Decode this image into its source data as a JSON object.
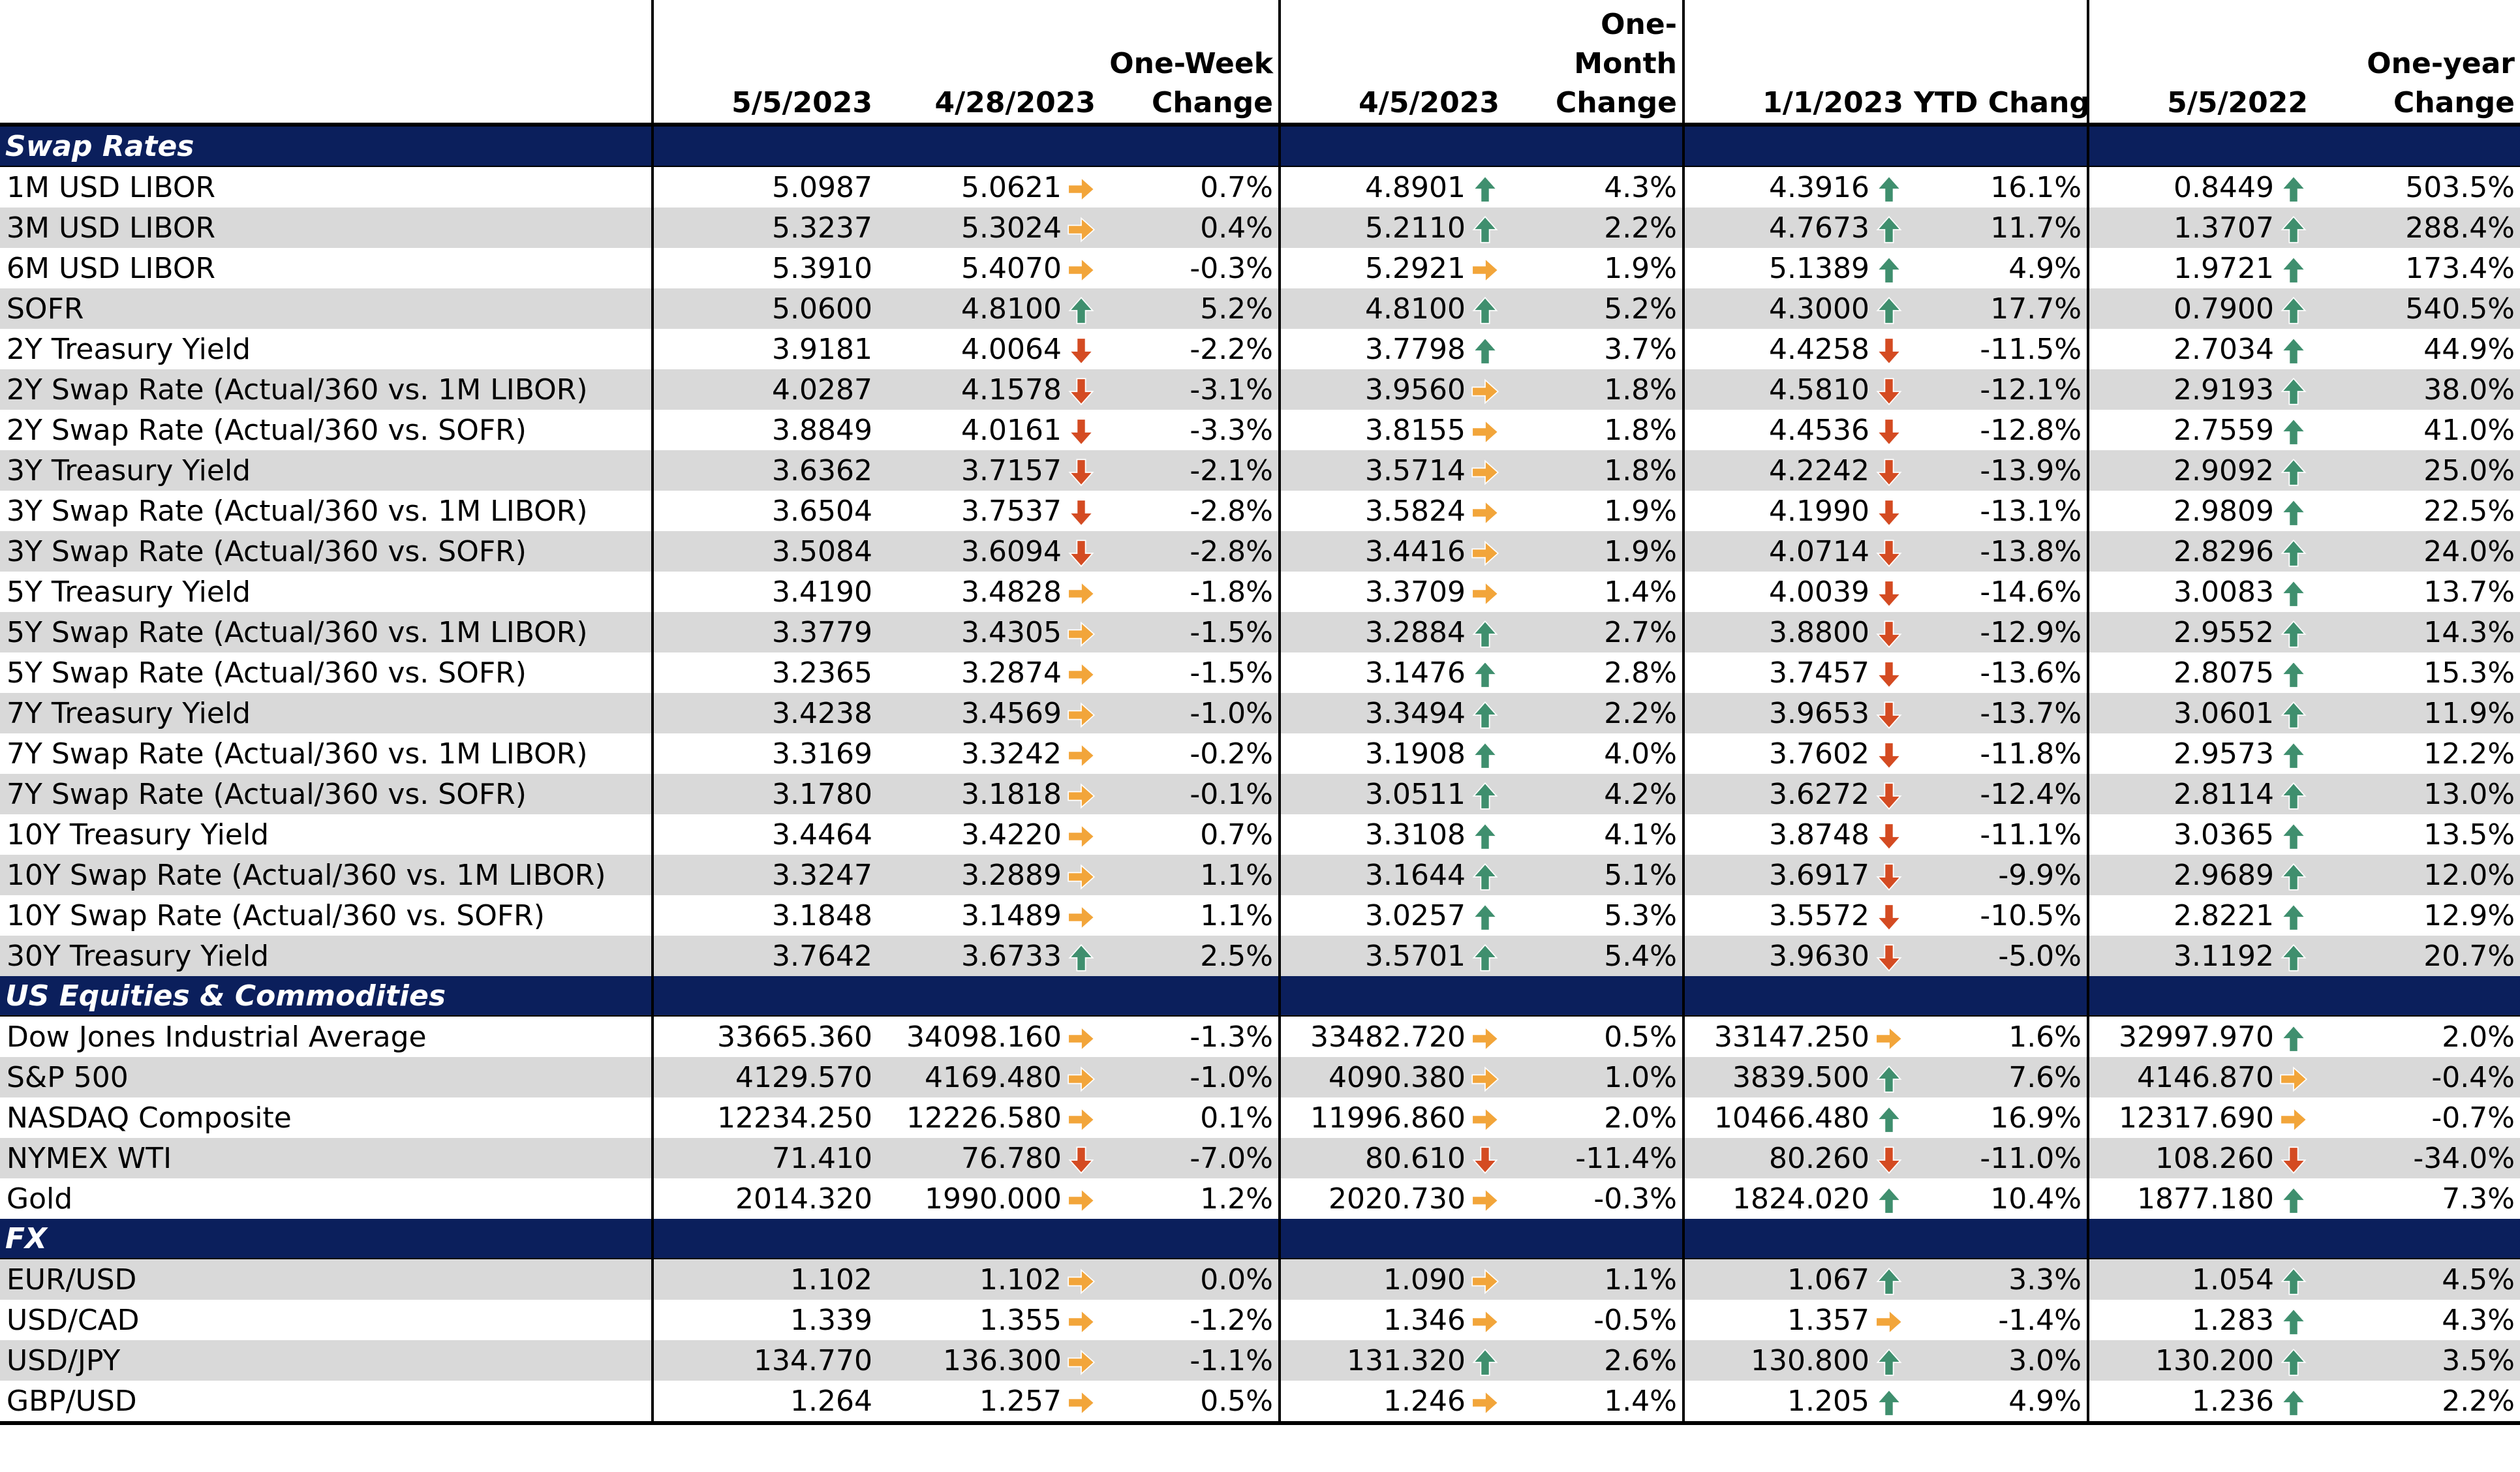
{
  "colors": {
    "header_band": "#0b1f5c",
    "row_alt": "#d9d9d9",
    "arrow_up": "#3f8f6e",
    "arrow_down": "#d44b22",
    "arrow_flat": "#f2a53a"
  },
  "headers": {
    "col1": "5/5/2023",
    "col2": "4/28/2023",
    "col3": "One-Week Change",
    "col4": "4/5/2023",
    "col5": "One-Month Change",
    "col6": "1/1/2023",
    "col7": "YTD Change",
    "col8": "5/5/2022",
    "col9": "One-year Change"
  },
  "sections": [
    {
      "title": "Swap Rates",
      "rows": [
        {
          "label": "1M USD LIBOR",
          "v1": "5.0987",
          "v2": "5.0621",
          "a2": "flat",
          "c2": "0.7%",
          "v3": "4.8901",
          "a3": "up",
          "c3": "4.3%",
          "v4": "4.3916",
          "a4": "up",
          "c4": "16.1%",
          "v5": "0.8449",
          "a5": "up",
          "c5": "503.5%"
        },
        {
          "label": "3M USD LIBOR",
          "v1": "5.3237",
          "v2": "5.3024",
          "a2": "flat",
          "c2": "0.4%",
          "v3": "5.2110",
          "a3": "up",
          "c3": "2.2%",
          "v4": "4.7673",
          "a4": "up",
          "c4": "11.7%",
          "v5": "1.3707",
          "a5": "up",
          "c5": "288.4%"
        },
        {
          "label": "6M USD LIBOR",
          "v1": "5.3910",
          "v2": "5.4070",
          "a2": "flat",
          "c2": "-0.3%",
          "v3": "5.2921",
          "a3": "flat",
          "c3": "1.9%",
          "v4": "5.1389",
          "a4": "up",
          "c4": "4.9%",
          "v5": "1.9721",
          "a5": "up",
          "c5": "173.4%"
        },
        {
          "label": "SOFR",
          "v1": "5.0600",
          "v2": "4.8100",
          "a2": "up",
          "c2": "5.2%",
          "v3": "4.8100",
          "a3": "up",
          "c3": "5.2%",
          "v4": "4.3000",
          "a4": "up",
          "c4": "17.7%",
          "v5": "0.7900",
          "a5": "up",
          "c5": "540.5%"
        },
        {
          "label": "2Y Treasury Yield",
          "v1": "3.9181",
          "v2": "4.0064",
          "a2": "down",
          "c2": "-2.2%",
          "v3": "3.7798",
          "a3": "up",
          "c3": "3.7%",
          "v4": "4.4258",
          "a4": "down",
          "c4": "-11.5%",
          "v5": "2.7034",
          "a5": "up",
          "c5": "44.9%"
        },
        {
          "label": "2Y Swap Rate (Actual/360 vs. 1M LIBOR)",
          "v1": "4.0287",
          "v2": "4.1578",
          "a2": "down",
          "c2": "-3.1%",
          "v3": "3.9560",
          "a3": "flat",
          "c3": "1.8%",
          "v4": "4.5810",
          "a4": "down",
          "c4": "-12.1%",
          "v5": "2.9193",
          "a5": "up",
          "c5": "38.0%"
        },
        {
          "label": "2Y Swap Rate (Actual/360 vs. SOFR)",
          "v1": "3.8849",
          "v2": "4.0161",
          "a2": "down",
          "c2": "-3.3%",
          "v3": "3.8155",
          "a3": "flat",
          "c3": "1.8%",
          "v4": "4.4536",
          "a4": "down",
          "c4": "-12.8%",
          "v5": "2.7559",
          "a5": "up",
          "c5": "41.0%"
        },
        {
          "label": "3Y Treasury Yield",
          "v1": "3.6362",
          "v2": "3.7157",
          "a2": "down",
          "c2": "-2.1%",
          "v3": "3.5714",
          "a3": "flat",
          "c3": "1.8%",
          "v4": "4.2242",
          "a4": "down",
          "c4": "-13.9%",
          "v5": "2.9092",
          "a5": "up",
          "c5": "25.0%"
        },
        {
          "label": "3Y Swap Rate (Actual/360 vs. 1M LIBOR)",
          "v1": "3.6504",
          "v2": "3.7537",
          "a2": "down",
          "c2": "-2.8%",
          "v3": "3.5824",
          "a3": "flat",
          "c3": "1.9%",
          "v4": "4.1990",
          "a4": "down",
          "c4": "-13.1%",
          "v5": "2.9809",
          "a5": "up",
          "c5": "22.5%"
        },
        {
          "label": "3Y Swap Rate (Actual/360 vs. SOFR)",
          "v1": "3.5084",
          "v2": "3.6094",
          "a2": "down",
          "c2": "-2.8%",
          "v3": "3.4416",
          "a3": "flat",
          "c3": "1.9%",
          "v4": "4.0714",
          "a4": "down",
          "c4": "-13.8%",
          "v5": "2.8296",
          "a5": "up",
          "c5": "24.0%"
        },
        {
          "label": "5Y Treasury Yield",
          "v1": "3.4190",
          "v2": "3.4828",
          "a2": "flat",
          "c2": "-1.8%",
          "v3": "3.3709",
          "a3": "flat",
          "c3": "1.4%",
          "v4": "4.0039",
          "a4": "down",
          "c4": "-14.6%",
          "v5": "3.0083",
          "a5": "up",
          "c5": "13.7%"
        },
        {
          "label": "5Y Swap Rate (Actual/360 vs. 1M LIBOR)",
          "v1": "3.3779",
          "v2": "3.4305",
          "a2": "flat",
          "c2": "-1.5%",
          "v3": "3.2884",
          "a3": "up",
          "c3": "2.7%",
          "v4": "3.8800",
          "a4": "down",
          "c4": "-12.9%",
          "v5": "2.9552",
          "a5": "up",
          "c5": "14.3%"
        },
        {
          "label": "5Y Swap Rate (Actual/360 vs. SOFR)",
          "v1": "3.2365",
          "v2": "3.2874",
          "a2": "flat",
          "c2": "-1.5%",
          "v3": "3.1476",
          "a3": "up",
          "c3": "2.8%",
          "v4": "3.7457",
          "a4": "down",
          "c4": "-13.6%",
          "v5": "2.8075",
          "a5": "up",
          "c5": "15.3%"
        },
        {
          "label": "7Y Treasury Yield",
          "v1": "3.4238",
          "v2": "3.4569",
          "a2": "flat",
          "c2": "-1.0%",
          "v3": "3.3494",
          "a3": "up",
          "c3": "2.2%",
          "v4": "3.9653",
          "a4": "down",
          "c4": "-13.7%",
          "v5": "3.0601",
          "a5": "up",
          "c5": "11.9%"
        },
        {
          "label": "7Y Swap Rate (Actual/360 vs. 1M LIBOR)",
          "v1": "3.3169",
          "v2": "3.3242",
          "a2": "flat",
          "c2": "-0.2%",
          "v3": "3.1908",
          "a3": "up",
          "c3": "4.0%",
          "v4": "3.7602",
          "a4": "down",
          "c4": "-11.8%",
          "v5": "2.9573",
          "a5": "up",
          "c5": "12.2%"
        },
        {
          "label": "7Y Swap Rate (Actual/360 vs. SOFR)",
          "v1": "3.1780",
          "v2": "3.1818",
          "a2": "flat",
          "c2": "-0.1%",
          "v3": "3.0511",
          "a3": "up",
          "c3": "4.2%",
          "v4": "3.6272",
          "a4": "down",
          "c4": "-12.4%",
          "v5": "2.8114",
          "a5": "up",
          "c5": "13.0%"
        },
        {
          "label": "10Y Treasury Yield",
          "v1": "3.4464",
          "v2": "3.4220",
          "a2": "flat",
          "c2": "0.7%",
          "v3": "3.3108",
          "a3": "up",
          "c3": "4.1%",
          "v4": "3.8748",
          "a4": "down",
          "c4": "-11.1%",
          "v5": "3.0365",
          "a5": "up",
          "c5": "13.5%"
        },
        {
          "label": "10Y Swap Rate (Actual/360 vs. 1M LIBOR)",
          "v1": "3.3247",
          "v2": "3.2889",
          "a2": "flat",
          "c2": "1.1%",
          "v3": "3.1644",
          "a3": "up",
          "c3": "5.1%",
          "v4": "3.6917",
          "a4": "down",
          "c4": "-9.9%",
          "v5": "2.9689",
          "a5": "up",
          "c5": "12.0%"
        },
        {
          "label": "10Y Swap Rate (Actual/360 vs. SOFR)",
          "v1": "3.1848",
          "v2": "3.1489",
          "a2": "flat",
          "c2": "1.1%",
          "v3": "3.0257",
          "a3": "up",
          "c3": "5.3%",
          "v4": "3.5572",
          "a4": "down",
          "c4": "-10.5%",
          "v5": "2.8221",
          "a5": "up",
          "c5": "12.9%"
        },
        {
          "label": "30Y Treasury Yield",
          "v1": "3.7642",
          "v2": "3.6733",
          "a2": "up",
          "c2": "2.5%",
          "v3": "3.5701",
          "a3": "up",
          "c3": "5.4%",
          "v4": "3.9630",
          "a4": "down",
          "c4": "-5.0%",
          "v5": "3.1192",
          "a5": "up",
          "c5": "20.7%"
        }
      ]
    },
    {
      "title": "US Equities & Commodities",
      "rows": [
        {
          "label": "Dow Jones Industrial Average",
          "v1": "33665.360",
          "v2": "34098.160",
          "a2": "flat",
          "c2": "-1.3%",
          "v3": "33482.720",
          "a3": "flat",
          "c3": "0.5%",
          "v4": "33147.250",
          "a4": "flat",
          "c4": "1.6%",
          "v5": "32997.970",
          "a5": "up",
          "c5": "2.0%"
        },
        {
          "label": "S&P 500",
          "v1": "4129.570",
          "v2": "4169.480",
          "a2": "flat",
          "c2": "-1.0%",
          "v3": "4090.380",
          "a3": "flat",
          "c3": "1.0%",
          "v4": "3839.500",
          "a4": "up",
          "c4": "7.6%",
          "v5": "4146.870",
          "a5": "flat",
          "c5": "-0.4%"
        },
        {
          "label": "NASDAQ Composite",
          "v1": "12234.250",
          "v2": "12226.580",
          "a2": "flat",
          "c2": "0.1%",
          "v3": "11996.860",
          "a3": "flat",
          "c3": "2.0%",
          "v4": "10466.480",
          "a4": "up",
          "c4": "16.9%",
          "v5": "12317.690",
          "a5": "flat",
          "c5": "-0.7%"
        },
        {
          "label": "NYMEX WTI",
          "v1": "71.410",
          "v2": "76.780",
          "a2": "down",
          "c2": "-7.0%",
          "v3": "80.610",
          "a3": "down",
          "c3": "-11.4%",
          "v4": "80.260",
          "a4": "down",
          "c4": "-11.0%",
          "v5": "108.260",
          "a5": "down",
          "c5": "-34.0%"
        },
        {
          "label": "Gold",
          "v1": "2014.320",
          "v2": "1990.000",
          "a2": "flat",
          "c2": "1.2%",
          "v3": "2020.730",
          "a3": "flat",
          "c3": "-0.3%",
          "v4": "1824.020",
          "a4": "up",
          "c4": "10.4%",
          "v5": "1877.180",
          "a5": "up",
          "c5": "7.3%"
        }
      ]
    },
    {
      "title": "FX",
      "rows": [
        {
          "label": "EUR/USD",
          "v1": "1.102",
          "v2": "1.102",
          "a2": "flat",
          "c2": "0.0%",
          "v3": "1.090",
          "a3": "flat",
          "c3": "1.1%",
          "v4": "1.067",
          "a4": "up",
          "c4": "3.3%",
          "v5": "1.054",
          "a5": "up",
          "c5": "4.5%"
        },
        {
          "label": "USD/CAD",
          "v1": "1.339",
          "v2": "1.355",
          "a2": "flat",
          "c2": "-1.2%",
          "v3": "1.346",
          "a3": "flat",
          "c3": "-0.5%",
          "v4": "1.357",
          "a4": "flat",
          "c4": "-1.4%",
          "v5": "1.283",
          "a5": "up",
          "c5": "4.3%"
        },
        {
          "label": "USD/JPY",
          "v1": "134.770",
          "v2": "136.300",
          "a2": "flat",
          "c2": "-1.1%",
          "v3": "131.320",
          "a3": "up",
          "c3": "2.6%",
          "v4": "130.800",
          "a4": "up",
          "c4": "3.0%",
          "v5": "130.200",
          "a5": "up",
          "c5": "3.5%"
        },
        {
          "label": "GBP/USD",
          "v1": "1.264",
          "v2": "1.257",
          "a2": "flat",
          "c2": "0.5%",
          "v3": "1.246",
          "a3": "flat",
          "c3": "1.4%",
          "v4": "1.205",
          "a4": "up",
          "c4": "4.9%",
          "v5": "1.236",
          "a5": "up",
          "c5": "2.2%"
        }
      ]
    }
  ]
}
